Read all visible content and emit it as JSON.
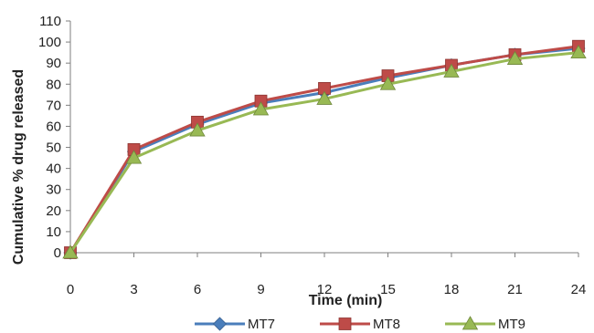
{
  "chart_data": {
    "type": "line",
    "title": "",
    "xlabel": "Time (min)",
    "ylabel": "Cumulative % drug released",
    "x": [
      0,
      3,
      6,
      9,
      12,
      15,
      18,
      21,
      24
    ],
    "x_tick_labels": [
      "0",
      "3",
      "6",
      "9",
      "12",
      "15",
      "18",
      "21",
      "24"
    ],
    "y_tick_labels": [
      "0",
      "10",
      "20",
      "30",
      "40",
      "50",
      "60",
      "70",
      "80",
      "90",
      "100",
      "110"
    ],
    "xlim": [
      0,
      24
    ],
    "ylim": [
      0,
      110
    ],
    "grid": false,
    "legend_position": "bottom",
    "series": [
      {
        "name": "MT7",
        "color": "#4a7ebb",
        "marker": "diamond",
        "values": [
          0,
          48,
          61,
          71,
          76,
          83,
          89,
          94,
          97
        ]
      },
      {
        "name": "MT8",
        "color": "#be4b48",
        "marker": "square",
        "values": [
          0,
          49,
          62,
          72,
          78,
          84,
          89,
          94,
          98
        ]
      },
      {
        "name": "MT9",
        "color": "#98b954",
        "marker": "triangle",
        "values": [
          0,
          45,
          58,
          68,
          73,
          80,
          86,
          92,
          95
        ]
      }
    ]
  }
}
